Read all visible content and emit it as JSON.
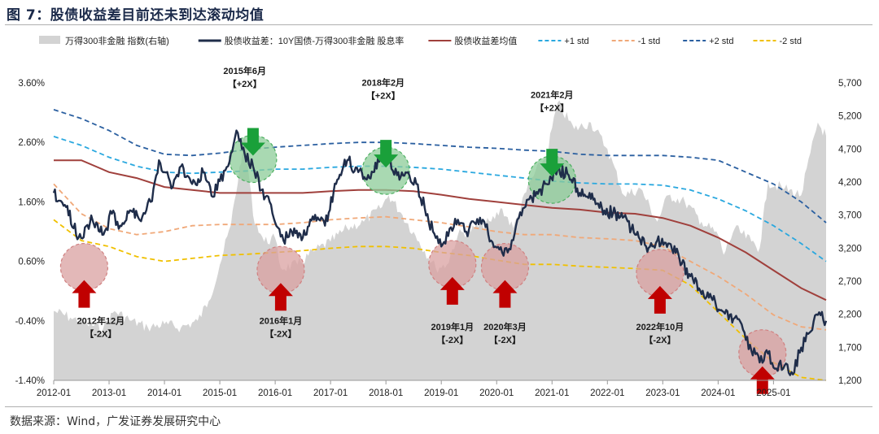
{
  "title": "图 7：股债收益差目前还未到达滚动均值",
  "source": "数据来源：Wind，广发证券发展研究中心",
  "colors": {
    "area": "#d3d3d3",
    "spread": "#1f2d4a",
    "mean": "#a0403c",
    "plus1": "#2aa8df",
    "minus1": "#f0a878",
    "plus2": "#2a5fa0",
    "minus2": "#f0c000",
    "up_arrow": "#c00000",
    "down_arrow": "#1aa03a",
    "green_circle": "#8ccc98",
    "red_circle": "#d9a0a0"
  },
  "chart_data": {
    "type": "line",
    "legend": [
      {
        "key": "area",
        "label": "万得300非金融 指数(右轴)",
        "style": "area"
      },
      {
        "key": "spread",
        "label": "股债收益差：10Y国债-万得300非金融 股息率",
        "style": "solid"
      },
      {
        "key": "mean",
        "label": "股债收益差均值",
        "style": "solid"
      },
      {
        "key": "plus1",
        "label": "+1 std",
        "style": "dashed"
      },
      {
        "key": "minus1",
        "label": "-1 std",
        "style": "dashed"
      },
      {
        "key": "plus2",
        "label": "+2 std",
        "style": "dashed"
      },
      {
        "key": "minus2",
        "label": "-2 std",
        "style": "dashed"
      }
    ],
    "x_ticks": [
      "2012-01",
      "2013-01",
      "2014-01",
      "2015-01",
      "2016-01",
      "2017-01",
      "2018-01",
      "2019-01",
      "2020-01",
      "2021-01",
      "2022-01",
      "2023-01",
      "2024-01",
      "2025-01"
    ],
    "x_range": [
      2012.0,
      2025.95
    ],
    "y_left": {
      "min": -1.4,
      "max": 3.6,
      "ticks": [
        "3.60%",
        "2.60%",
        "1.60%",
        "0.60%",
        "-0.40%",
        "-1.40%"
      ],
      "tick_values": [
        3.6,
        2.6,
        1.6,
        0.6,
        -0.4,
        -1.4
      ]
    },
    "y_right": {
      "min": 1200,
      "max": 5700,
      "ticks": [
        "5,700",
        "5,200",
        "4,700",
        "4,200",
        "3,700",
        "3,200",
        "2,700",
        "2,200",
        "1,700",
        "1,200"
      ],
      "tick_values": [
        5700,
        5200,
        4700,
        4200,
        3700,
        3200,
        2700,
        2200,
        1700,
        1200
      ]
    },
    "series": {
      "area": {
        "x": [
          2012.0,
          2012.3,
          2012.6,
          2012.9,
          2013.1,
          2013.4,
          2013.7,
          2014.0,
          2014.3,
          2014.6,
          2014.8,
          2015.0,
          2015.2,
          2015.45,
          2015.6,
          2015.8,
          2016.0,
          2016.1,
          2016.4,
          2016.7,
          2017.0,
          2017.3,
          2017.6,
          2017.9,
          2018.05,
          2018.3,
          2018.6,
          2018.9,
          2019.1,
          2019.3,
          2019.6,
          2019.9,
          2020.1,
          2020.3,
          2020.6,
          2020.9,
          2021.1,
          2021.4,
          2021.7,
          2022.0,
          2022.3,
          2022.6,
          2022.9,
          2023.1,
          2023.4,
          2023.7,
          2024.0,
          2024.1,
          2024.3,
          2024.6,
          2024.75,
          2024.9,
          2025.2,
          2025.5,
          2025.8,
          2025.95
        ],
        "y": [
          2250,
          2150,
          2050,
          2000,
          2250,
          2100,
          2000,
          2050,
          2000,
          2100,
          2400,
          2950,
          3550,
          4900,
          3700,
          3300,
          3350,
          2900,
          2950,
          3150,
          3300,
          3500,
          3600,
          3800,
          4000,
          3700,
          3300,
          2900,
          2950,
          3400,
          3500,
          3600,
          3800,
          3500,
          4200,
          4600,
          5400,
          5000,
          5100,
          4700,
          4000,
          4100,
          3600,
          4000,
          3900,
          3600,
          3400,
          3100,
          3500,
          3300,
          3200,
          4200,
          4100,
          4000,
          5100,
          4900
        ]
      },
      "spread": {
        "x": [
          2012.0,
          2012.2,
          2012.45,
          2012.7,
          2012.9,
          2013.05,
          2013.2,
          2013.4,
          2013.6,
          2013.75,
          2013.9,
          2014.0,
          2014.15,
          2014.3,
          2014.5,
          2014.7,
          2014.85,
          2015.0,
          2015.15,
          2015.3,
          2015.45,
          2015.6,
          2015.75,
          2015.9,
          2016.0,
          2016.15,
          2016.3,
          2016.5,
          2016.7,
          2016.9,
          2017.1,
          2017.3,
          2017.5,
          2017.7,
          2017.9,
          2018.05,
          2018.2,
          2018.4,
          2018.55,
          2018.7,
          2018.85,
          2019.0,
          2019.15,
          2019.3,
          2019.45,
          2019.6,
          2019.75,
          2019.9,
          2020.05,
          2020.2,
          2020.35,
          2020.5,
          2020.7,
          2020.9,
          2021.1,
          2021.3,
          2021.5,
          2021.7,
          2021.9,
          2022.1,
          2022.3,
          2022.5,
          2022.7,
          2022.9,
          2023.1,
          2023.3,
          2023.5,
          2023.7,
          2023.9,
          2024.1,
          2024.3,
          2024.45,
          2024.6,
          2024.75,
          2024.9,
          2025.05,
          2025.2,
          2025.35,
          2025.5,
          2025.65,
          2025.8,
          2025.95
        ],
        "y": [
          1.75,
          1.55,
          1.0,
          1.3,
          1.05,
          1.4,
          1.2,
          1.45,
          1.35,
          1.6,
          2.3,
          2.1,
          1.85,
          2.2,
          1.9,
          2.1,
          1.7,
          1.95,
          2.2,
          2.8,
          2.4,
          2.2,
          1.8,
          1.6,
          1.25,
          0.95,
          1.1,
          1.0,
          1.3,
          1.2,
          1.9,
          2.3,
          2.1,
          2.0,
          2.35,
          2.3,
          2.05,
          2.1,
          1.9,
          1.5,
          1.1,
          0.85,
          1.15,
          1.3,
          1.1,
          1.25,
          1.3,
          0.95,
          0.8,
          0.75,
          1.2,
          1.5,
          1.7,
          1.9,
          2.15,
          2.05,
          1.75,
          1.65,
          1.5,
          1.4,
          1.35,
          1.05,
          0.85,
          0.95,
          0.9,
          0.65,
          0.35,
          0.05,
          -0.05,
          -0.25,
          -0.35,
          -0.55,
          -0.9,
          -1.1,
          -0.95,
          -1.2,
          -1.15,
          -1.3,
          -0.85,
          -0.6,
          -0.3,
          -0.4
        ]
      },
      "mean": {
        "x": [
          2012.0,
          2012.5,
          2013.0,
          2013.5,
          2014.0,
          2014.5,
          2015.0,
          2015.5,
          2016.0,
          2016.5,
          2017.0,
          2017.5,
          2018.0,
          2018.5,
          2019.0,
          2019.5,
          2020.0,
          2020.5,
          2021.0,
          2021.5,
          2022.0,
          2022.5,
          2023.0,
          2023.5,
          2024.0,
          2024.5,
          2025.0,
          2025.5,
          2025.95
        ],
        "y": [
          2.3,
          2.3,
          2.1,
          2.0,
          1.85,
          1.8,
          1.75,
          1.75,
          1.75,
          1.75,
          1.78,
          1.8,
          1.8,
          1.78,
          1.72,
          1.65,
          1.6,
          1.55,
          1.5,
          1.47,
          1.42,
          1.4,
          1.33,
          1.2,
          1.0,
          0.75,
          0.45,
          0.15,
          -0.05
        ]
      },
      "plus1": {
        "x": [
          2012.0,
          2012.5,
          2013.0,
          2013.5,
          2014.0,
          2014.5,
          2015.0,
          2015.5,
          2016.0,
          2016.5,
          2017.0,
          2017.5,
          2018.0,
          2018.5,
          2019.0,
          2019.5,
          2020.0,
          2020.5,
          2021.0,
          2021.5,
          2022.0,
          2022.5,
          2023.0,
          2023.5,
          2024.0,
          2024.5,
          2025.0,
          2025.5,
          2025.95
        ],
        "y": [
          2.7,
          2.55,
          2.35,
          2.2,
          2.1,
          2.08,
          2.1,
          2.12,
          2.15,
          2.15,
          2.18,
          2.2,
          2.2,
          2.18,
          2.15,
          2.1,
          2.05,
          2.0,
          1.95,
          1.92,
          1.9,
          1.9,
          1.88,
          1.8,
          1.65,
          1.45,
          1.2,
          0.9,
          0.6
        ]
      },
      "minus1": {
        "x": [
          2012.0,
          2012.5,
          2013.0,
          2013.5,
          2014.0,
          2014.5,
          2015.0,
          2015.5,
          2016.0,
          2016.5,
          2017.0,
          2017.5,
          2018.0,
          2018.5,
          2019.0,
          2019.5,
          2020.0,
          2020.5,
          2021.0,
          2021.5,
          2022.0,
          2022.5,
          2023.0,
          2023.5,
          2024.0,
          2024.5,
          2025.0,
          2025.5,
          2025.95
        ],
        "y": [
          1.9,
          1.4,
          1.15,
          1.05,
          1.1,
          1.2,
          1.22,
          1.22,
          1.22,
          1.25,
          1.3,
          1.33,
          1.35,
          1.3,
          1.25,
          1.18,
          1.1,
          1.05,
          1.05,
          1.0,
          0.98,
          0.95,
          0.85,
          0.6,
          0.35,
          0.05,
          -0.3,
          -0.5,
          -0.55
        ]
      },
      "plus2": {
        "x": [
          2012.0,
          2012.5,
          2013.0,
          2013.5,
          2014.0,
          2014.5,
          2015.0,
          2015.5,
          2016.0,
          2016.5,
          2017.0,
          2017.5,
          2018.0,
          2018.5,
          2019.0,
          2019.5,
          2020.0,
          2020.5,
          2021.0,
          2021.5,
          2022.0,
          2022.5,
          2023.0,
          2023.5,
          2024.0,
          2024.5,
          2025.0,
          2025.5,
          2025.95
        ],
        "y": [
          3.15,
          3.0,
          2.8,
          2.55,
          2.4,
          2.38,
          2.42,
          2.48,
          2.52,
          2.55,
          2.58,
          2.6,
          2.6,
          2.58,
          2.55,
          2.52,
          2.5,
          2.47,
          2.45,
          2.4,
          2.38,
          2.38,
          2.38,
          2.35,
          2.3,
          2.1,
          1.9,
          1.6,
          1.25
        ]
      },
      "minus2": {
        "x": [
          2012.0,
          2012.5,
          2013.0,
          2013.5,
          2014.0,
          2014.5,
          2015.0,
          2015.5,
          2016.0,
          2016.5,
          2017.0,
          2017.5,
          2018.0,
          2018.5,
          2019.0,
          2019.5,
          2020.0,
          2020.5,
          2021.0,
          2021.5,
          2022.0,
          2022.5,
          2023.0,
          2023.5,
          2024.0,
          2024.5,
          2025.0,
          2025.5,
          2025.95
        ],
        "y": [
          1.3,
          0.95,
          0.85,
          0.68,
          0.6,
          0.65,
          0.7,
          0.72,
          0.75,
          0.78,
          0.82,
          0.85,
          0.85,
          0.82,
          0.75,
          0.7,
          0.62,
          0.55,
          0.55,
          0.52,
          0.5,
          0.48,
          0.45,
          0.2,
          -0.25,
          -0.7,
          -1.1,
          -1.35,
          -1.4
        ]
      }
    },
    "annotations": [
      {
        "type": "up",
        "x": 2012.55,
        "y": 0.45,
        "label": "2012年12月\n【-2X】",
        "label_x": 2012.85,
        "label_y": -0.45
      },
      {
        "type": "down",
        "x": 2015.6,
        "y": 2.35,
        "label": "2015年6月\n【+2X】",
        "label_x": 2015.45,
        "label_y": 3.75
      },
      {
        "type": "up",
        "x": 2016.1,
        "y": 0.4,
        "label": "2016年1月\n【-2X】",
        "label_x": 2016.1,
        "label_y": -0.45
      },
      {
        "type": "down",
        "x": 2018.0,
        "y": 2.15,
        "label": "2018年2月\n【+2X】",
        "label_x": 2017.95,
        "label_y": 3.55
      },
      {
        "type": "up",
        "x": 2019.2,
        "y": 0.5,
        "label": "2019年1月\n【-2X】",
        "label_x": 2019.2,
        "label_y": -0.55
      },
      {
        "type": "up",
        "x": 2020.15,
        "y": 0.45,
        "label": "2020年3月\n【-2X】",
        "label_x": 2020.15,
        "label_y": -0.55
      },
      {
        "type": "down",
        "x": 2021.0,
        "y": 2.0,
        "label": "2021年2月\n【+2X】",
        "label_x": 2021.0,
        "label_y": 3.35
      },
      {
        "type": "up",
        "x": 2022.95,
        "y": 0.35,
        "label": "2022年10月\n【-2X】",
        "label_x": 2022.95,
        "label_y": -0.55
      },
      {
        "type": "up",
        "x": 2024.8,
        "y": -1.0,
        "label": "",
        "label_x": 2024.8,
        "label_y": -1.0
      }
    ]
  }
}
